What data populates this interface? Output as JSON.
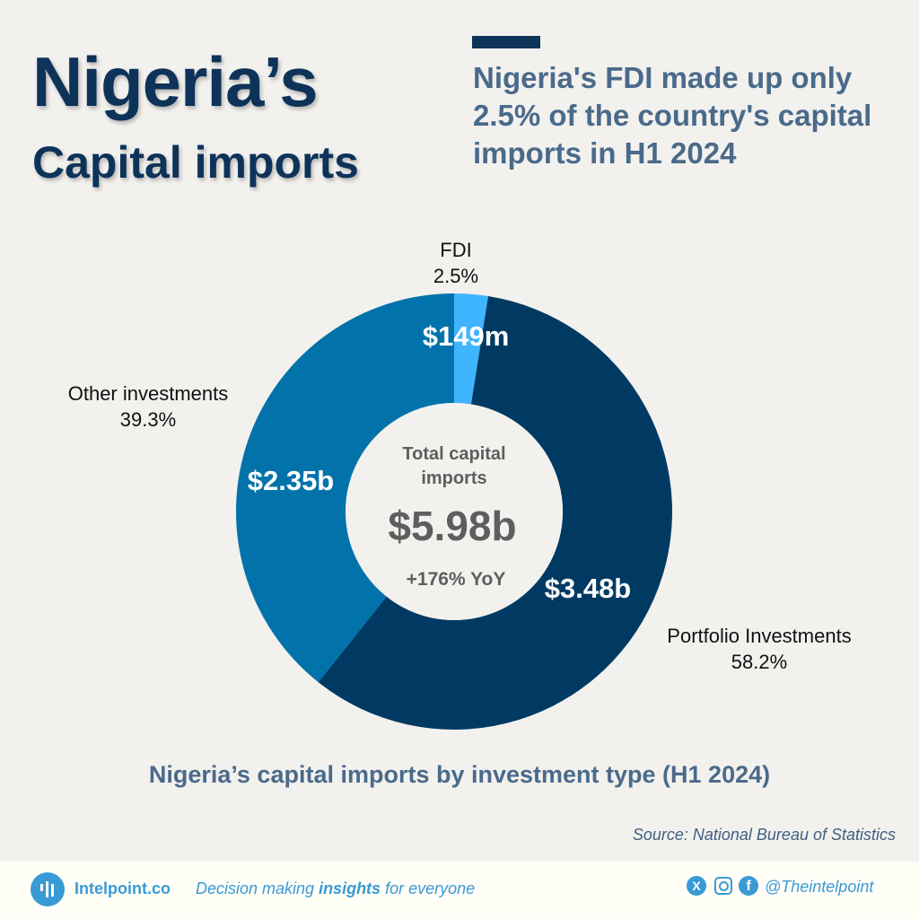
{
  "header": {
    "title_line1": "Nigeria’s",
    "title_line2": "Capital imports",
    "subtitle": "Nigeria's FDI made up only 2.5% of the country's capital imports in H1 2024"
  },
  "chart_data": {
    "type": "pie",
    "variant": "donut",
    "title": "Nigeria’s capital imports by investment type (H1 2024)",
    "categories": [
      "FDI",
      "Portfolio Investments",
      "Other investments"
    ],
    "values": [
      2.5,
      58.2,
      39.3
    ],
    "percent_labels": [
      "2.5%",
      "58.2%",
      "39.3%"
    ],
    "value_labels": [
      "$149m",
      "$3.48b",
      "$2.35b"
    ],
    "colors": [
      "#3fb4ff",
      "#003a63",
      "#0273aa"
    ],
    "center": {
      "label": "Total capital imports",
      "value": "$5.98b",
      "change": "+176% YoY"
    }
  },
  "source": "Source: National Bureau of Statistics",
  "footer": {
    "brand": "Intelpoint.co",
    "tagline_pre": "Decision making ",
    "tagline_bold": "insights",
    "tagline_post": " for everyone",
    "handle": "@Theintelpoint",
    "icons": [
      "x-icon",
      "instagram-icon",
      "facebook-icon"
    ]
  }
}
